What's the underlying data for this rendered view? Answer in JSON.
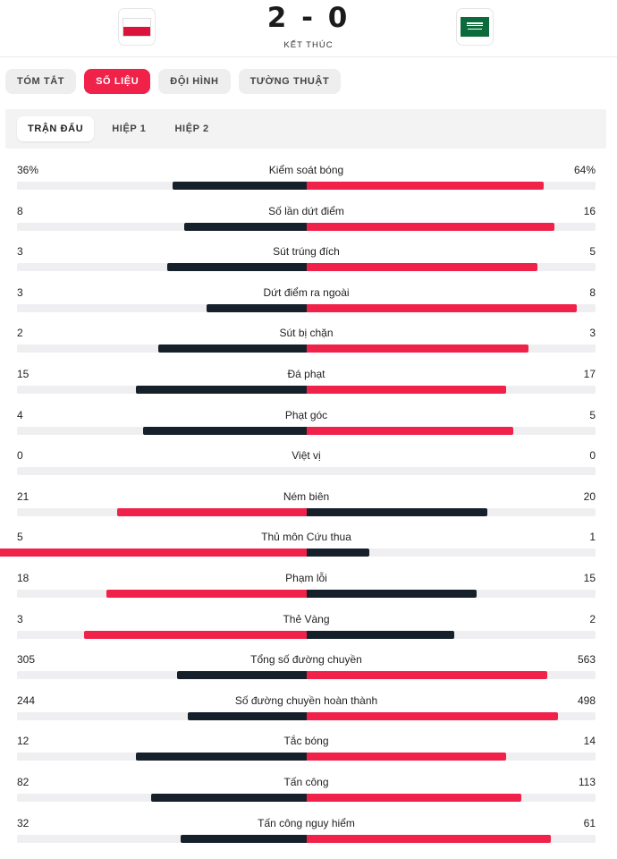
{
  "match": {
    "score": "2 - 0",
    "status": "KẾT THÚC",
    "home_flag": "poland-flag-icon",
    "away_flag": "saudi-arabia-flag-icon"
  },
  "tabs": [
    {
      "label": "TÓM TẮT",
      "active": false
    },
    {
      "label": "SỐ LIỆU",
      "active": true
    },
    {
      "label": "ĐỘI HÌNH",
      "active": false
    },
    {
      "label": "TƯỜNG THUẬT",
      "active": false
    }
  ],
  "subtabs": [
    {
      "label": "TRẬN ĐẤU",
      "active": true
    },
    {
      "label": "HIỆP 1",
      "active": false
    },
    {
      "label": "HIỆP 2",
      "active": false
    }
  ],
  "colors": {
    "accent": "#f0224a",
    "dark": "#15202b",
    "track": "#efeff1"
  },
  "stats": [
    {
      "label": "Kiểm soát bóng",
      "home": "36%",
      "away": "64%",
      "home_bar": 0.36,
      "away_bar": 0.64,
      "home_color": "dark",
      "away_color": "accent"
    },
    {
      "label": "Số lần dứt điểm",
      "home": "8",
      "away": "16",
      "home_bar": 0.33,
      "away_bar": 0.67,
      "home_color": "dark",
      "away_color": "accent"
    },
    {
      "label": "Sút trúng đích",
      "home": "3",
      "away": "5",
      "home_bar": 0.375,
      "away_bar": 0.625,
      "home_color": "dark",
      "away_color": "accent"
    },
    {
      "label": "Dứt điểm ra ngoài",
      "home": "3",
      "away": "8",
      "home_bar": 0.27,
      "away_bar": 0.73,
      "home_color": "dark",
      "away_color": "accent"
    },
    {
      "label": "Sút bị chặn",
      "home": "2",
      "away": "3",
      "home_bar": 0.4,
      "away_bar": 0.6,
      "home_color": "dark",
      "away_color": "accent"
    },
    {
      "label": "Đá phạt",
      "home": "15",
      "away": "17",
      "home_bar": 0.46,
      "away_bar": 0.54,
      "home_color": "dark",
      "away_color": "accent"
    },
    {
      "label": "Phạt góc",
      "home": "4",
      "away": "5",
      "home_bar": 0.44,
      "away_bar": 0.56,
      "home_color": "dark",
      "away_color": "accent"
    },
    {
      "label": "Việt vị",
      "home": "0",
      "away": "0",
      "home_bar": 0,
      "away_bar": 0,
      "home_color": "dark",
      "away_color": "accent"
    },
    {
      "label": "Ném biên",
      "home": "21",
      "away": "20",
      "home_bar": 0.51,
      "away_bar": 0.49,
      "home_color": "accent",
      "away_color": "dark"
    },
    {
      "label": "Thủ môn Cứu thua",
      "home": "5",
      "away": "1",
      "home_bar": 0.83,
      "away_bar": 0.17,
      "home_color": "accent",
      "away_color": "dark"
    },
    {
      "label": "Phạm lỗi",
      "home": "18",
      "away": "15",
      "home_bar": 0.54,
      "away_bar": 0.46,
      "home_color": "accent",
      "away_color": "dark"
    },
    {
      "label": "Thẻ Vàng",
      "home": "3",
      "away": "2",
      "home_bar": 0.6,
      "away_bar": 0.4,
      "home_color": "accent",
      "away_color": "dark"
    },
    {
      "label": "Tổng số đường chuyền",
      "home": "305",
      "away": "563",
      "home_bar": 0.35,
      "away_bar": 0.65,
      "home_color": "dark",
      "away_color": "accent"
    },
    {
      "label": "Số đường chuyền hoàn thành",
      "home": "244",
      "away": "498",
      "home_bar": 0.32,
      "away_bar": 0.68,
      "home_color": "dark",
      "away_color": "accent"
    },
    {
      "label": "Tắc bóng",
      "home": "12",
      "away": "14",
      "home_bar": 0.46,
      "away_bar": 0.54,
      "home_color": "dark",
      "away_color": "accent"
    },
    {
      "label": "Tấn công",
      "home": "82",
      "away": "113",
      "home_bar": 0.42,
      "away_bar": 0.58,
      "home_color": "dark",
      "away_color": "accent"
    },
    {
      "label": "Tấn công nguy hiểm",
      "home": "32",
      "away": "61",
      "home_bar": 0.34,
      "away_bar": 0.66,
      "home_color": "dark",
      "away_color": "accent"
    }
  ]
}
